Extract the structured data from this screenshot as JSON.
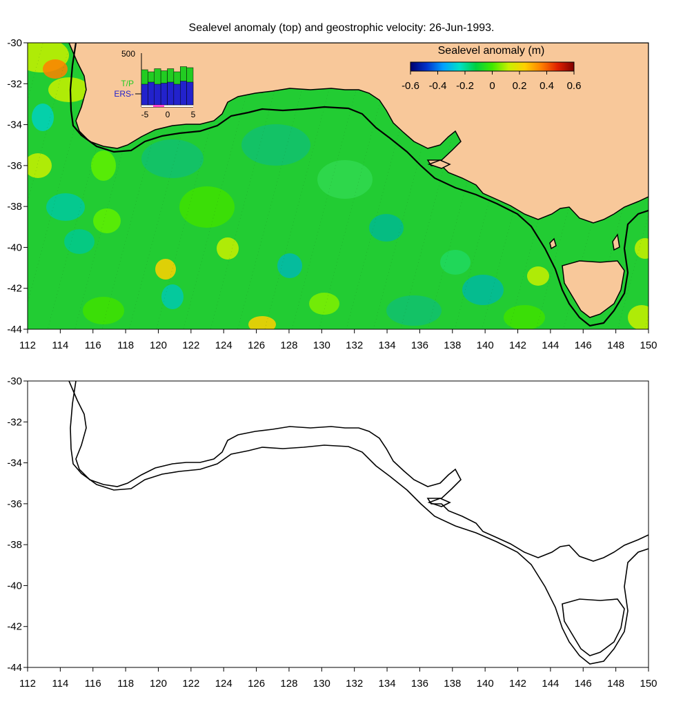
{
  "figure": {
    "title": "Sealevel anomaly (top) and geostrophic velocity: 26-Jun-1993."
  },
  "axes": {
    "x_ticks": [
      "112",
      "114",
      "116",
      "118",
      "120",
      "122",
      "124",
      "126",
      "128",
      "130",
      "132",
      "134",
      "136",
      "138",
      "140",
      "142",
      "144",
      "146",
      "148",
      "150"
    ],
    "y_ticks": [
      "-30",
      "-32",
      "-34",
      "-36",
      "-38",
      "-40",
      "-42",
      "-44"
    ],
    "lon_range": [
      112,
      150
    ],
    "lat_range": [
      -44,
      -30
    ]
  },
  "colorbar": {
    "title": "Sealevel anomaly (m)",
    "ticks": [
      "-0.6",
      "-0.4",
      "-0.2",
      "0",
      "0.2",
      "0.4",
      "0.6"
    ],
    "range": [
      -0.6,
      0.6
    ],
    "colors": [
      "#00006e",
      "#0033cc",
      "#00a0ff",
      "#00e0c8",
      "#00d040",
      "#40e800",
      "#c8f000",
      "#ffd000",
      "#ff8000",
      "#e02000",
      "#800000"
    ]
  },
  "inset": {
    "y_label": "500",
    "x_ticks": [
      "-5",
      "0",
      "5"
    ],
    "legend": [
      {
        "label": "T/P",
        "color": "#22cc22"
      },
      {
        "label": "ERS-",
        "color": "#2222cc"
      }
    ],
    "tp_values": [
      340,
      320,
      350,
      330,
      350,
      320,
      370,
      360
    ],
    "ers_values": [
      200,
      220,
      200,
      210,
      220,
      200,
      230,
      220
    ],
    "max": 500
  },
  "colors": {
    "land": "#f8c89a",
    "ocean": "#22cc33",
    "coast": "#000000",
    "shelf": "#000000"
  }
}
